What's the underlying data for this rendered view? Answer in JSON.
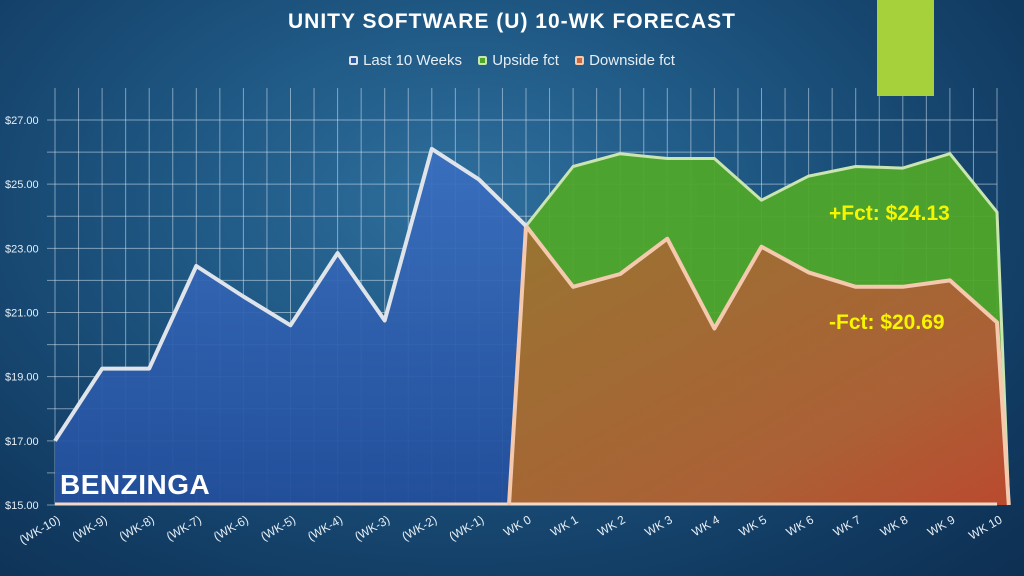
{
  "chart_data": {
    "type": "area",
    "title": "UNITY SOFTWARE (U) 10-WK FORECAST",
    "categories": [
      "(WK-10)",
      "(WK-9)",
      "(WK-8)",
      "(WK-7)",
      "(WK-6)",
      "(WK-5)",
      "(WK-4)",
      "(WK-3)",
      "(WK-2)",
      "(WK-1)",
      "WK 0",
      "WK 1",
      "WK 2",
      "WK 3",
      "WK 4",
      "WK 5",
      "WK 6",
      "WK 7",
      "WK 8",
      "WK 9",
      "WK 10"
    ],
    "ylim": [
      15,
      27
    ],
    "yticks": [
      "$15.00",
      "$17.00",
      "$19.00",
      "$21.00",
      "$23.00",
      "$25.00",
      "$27.00"
    ],
    "ytick_values": [
      15,
      17,
      19,
      21,
      23,
      25,
      27
    ],
    "grid": true,
    "legend_position": "top",
    "series": [
      {
        "name": "Last 10 Weeks",
        "color": "#2c5aa6",
        "line_color": "#dfe4ea",
        "values": [
          17.0,
          19.25,
          19.25,
          22.45,
          21.5,
          20.6,
          22.85,
          20.75,
          26.1,
          25.15,
          23.7,
          null,
          null,
          null,
          null,
          null,
          null,
          null,
          null,
          null,
          null
        ]
      },
      {
        "name": "Upside fct",
        "color": "#4fa62a",
        "line_color": "#c9e5b0",
        "values": [
          null,
          null,
          null,
          null,
          null,
          null,
          null,
          null,
          null,
          null,
          23.7,
          25.55,
          25.95,
          25.8,
          25.8,
          24.5,
          25.25,
          25.55,
          25.5,
          25.95,
          24.13
        ]
      },
      {
        "name": "Downside fct",
        "color": "#c56a3c",
        "line_color": "#f5c9ae",
        "values": [
          null,
          null,
          null,
          null,
          null,
          null,
          null,
          null,
          null,
          null,
          23.7,
          21.8,
          22.2,
          23.3,
          20.5,
          23.05,
          22.25,
          21.8,
          21.8,
          22.0,
          20.69
        ]
      }
    ],
    "annotations": [
      {
        "text": "+Fct: $24.13",
        "color": "#f6f500"
      },
      {
        "text": "-Fct: $20.69",
        "color": "#f6f500"
      }
    ]
  },
  "brand": "BENZINGA",
  "accent_color": "#a6d13a"
}
